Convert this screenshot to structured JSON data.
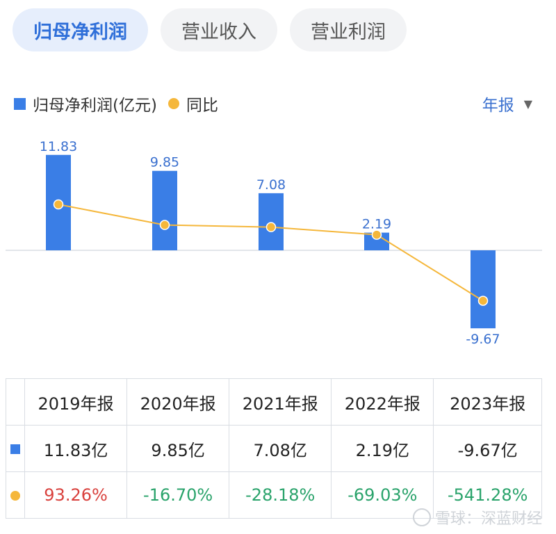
{
  "tabs": [
    "归母净利润",
    "营业收入",
    "营业利润"
  ],
  "legend": {
    "bar_label": "归母净利润(亿元)",
    "line_label": "同比"
  },
  "period": {
    "label": "年报"
  },
  "colors": {
    "bar": "#3a7ee6",
    "line": "#f5b73b",
    "value_text": "#3a70cf"
  },
  "chart_data": {
    "type": "bar",
    "categories": [
      "2019年报",
      "2020年报",
      "2021年报",
      "2022年报",
      "2023年报"
    ],
    "series": [
      {
        "name": "归母净利润(亿元)",
        "type": "bar",
        "values": [
          11.83,
          9.85,
          7.08,
          2.19,
          -9.67
        ]
      },
      {
        "name": "同比",
        "type": "line",
        "values": [
          93.26,
          -16.7,
          -28.18,
          -69.03,
          -541.28
        ]
      }
    ],
    "value_labels": [
      "11.83",
      "9.85",
      "7.08",
      "2.19",
      "-9.67"
    ]
  },
  "table": {
    "headers": [
      "2019年报",
      "2020年报",
      "2021年报",
      "2022年报",
      "2023年报"
    ],
    "profit_row": [
      "11.83亿",
      "9.85亿",
      "7.08亿",
      "2.19亿",
      "-9.67亿"
    ],
    "yoy_row": [
      "93.26%",
      "-16.70%",
      "-28.18%",
      "-69.03%",
      "-541.28%"
    ]
  },
  "watermark": "雪球：深蓝财经"
}
